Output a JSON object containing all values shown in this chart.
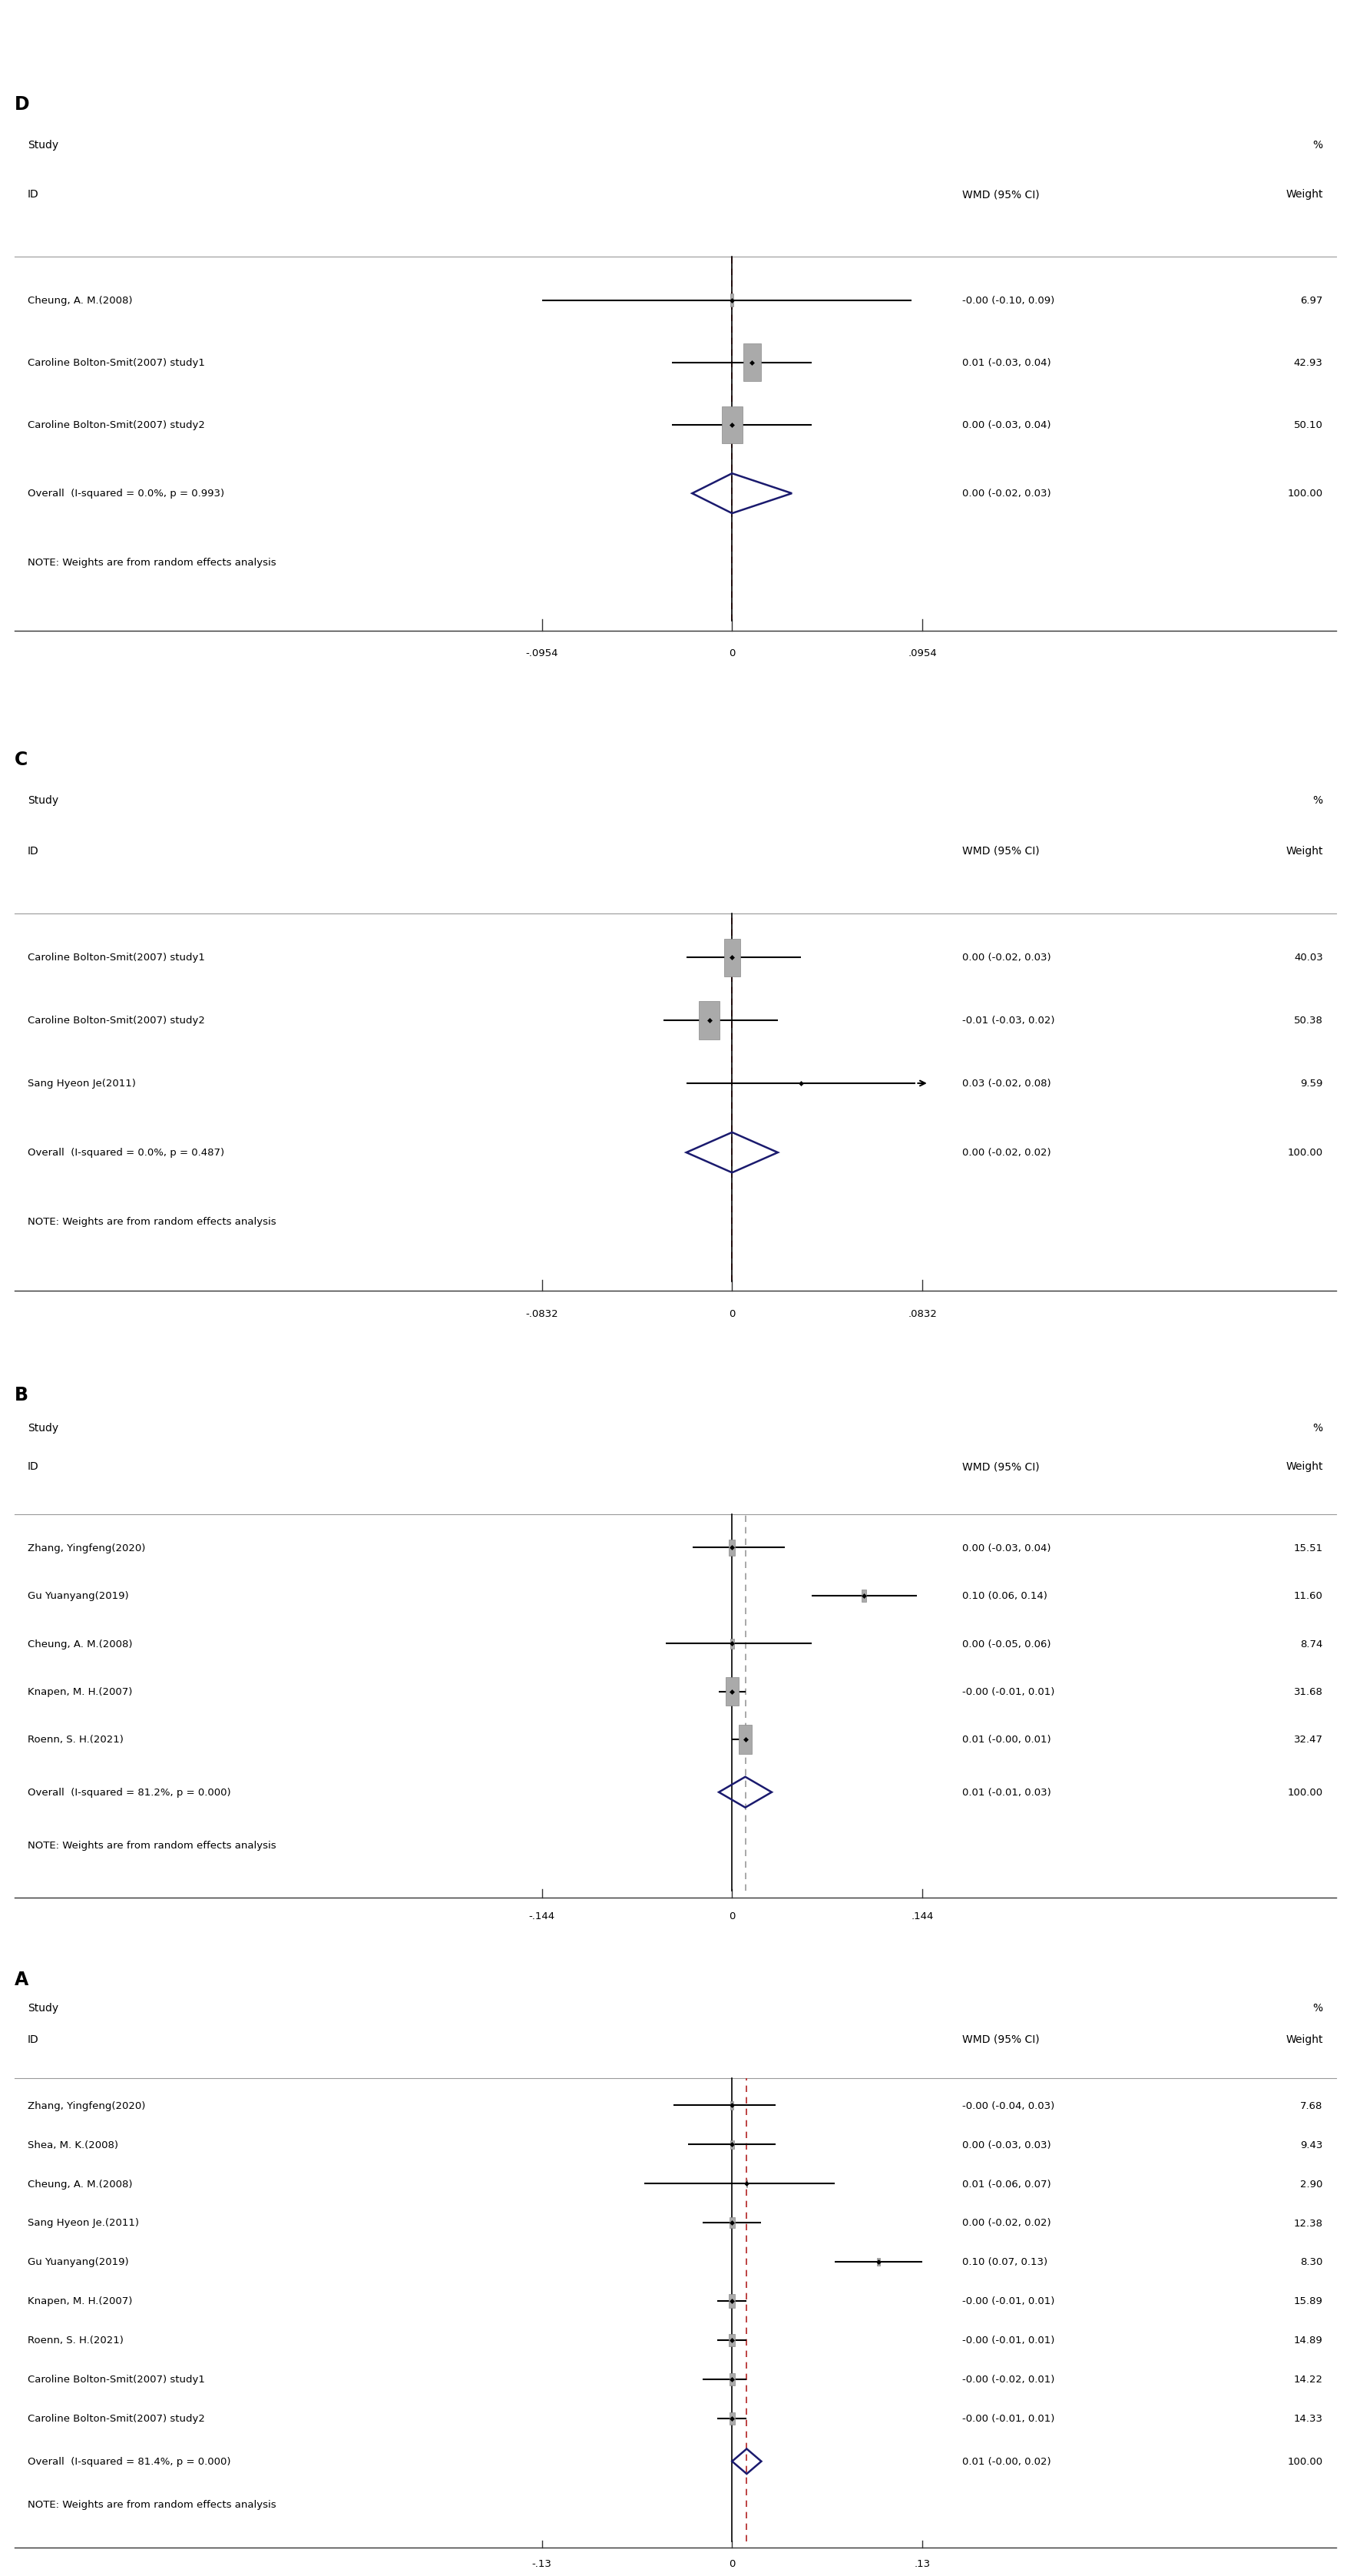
{
  "panels": [
    {
      "label": "A",
      "studies": [
        {
          "name": "Zhang, Yingfeng(2020)",
          "wmd": -0.0,
          "ci_low": -0.04,
          "ci_high": 0.03,
          "weight": 7.68,
          "wmd_str": "-0.00 (-0.04, 0.03)"
        },
        {
          "name": "Shea, M. K.(2008)",
          "wmd": 0.0,
          "ci_low": -0.03,
          "ci_high": 0.03,
          "weight": 9.43,
          "wmd_str": "0.00 (-0.03, 0.03)"
        },
        {
          "name": "Cheung, A. M.(2008)",
          "wmd": 0.01,
          "ci_low": -0.06,
          "ci_high": 0.07,
          "weight": 2.9,
          "wmd_str": "0.01 (-0.06, 0.07)"
        },
        {
          "name": "Sang Hyeon Je.(2011)",
          "wmd": 0.0,
          "ci_low": -0.02,
          "ci_high": 0.02,
          "weight": 12.38,
          "wmd_str": "0.00 (-0.02, 0.02)"
        },
        {
          "name": "Gu Yuanyang(2019)",
          "wmd": 0.1,
          "ci_low": 0.07,
          "ci_high": 0.13,
          "weight": 8.3,
          "wmd_str": "0.10 (0.07, 0.13)"
        },
        {
          "name": "Knapen, M. H.(2007)",
          "wmd": -0.0,
          "ci_low": -0.01,
          "ci_high": 0.01,
          "weight": 15.89,
          "wmd_str": "-0.00 (-0.01, 0.01)"
        },
        {
          "name": "Roenn, S. H.(2021)",
          "wmd": -0.0,
          "ci_low": -0.01,
          "ci_high": 0.01,
          "weight": 14.89,
          "wmd_str": "-0.00 (-0.01, 0.01)"
        },
        {
          "name": "Caroline Bolton-Smit(2007) study1",
          "wmd": -0.0,
          "ci_low": -0.02,
          "ci_high": 0.01,
          "weight": 14.22,
          "wmd_str": "-0.00 (-0.02, 0.01)"
        },
        {
          "name": "Caroline Bolton-Smit(2007) study2",
          "wmd": -0.0,
          "ci_low": -0.01,
          "ci_high": 0.01,
          "weight": 14.33,
          "wmd_str": "-0.00 (-0.01, 0.01)"
        }
      ],
      "overall": {
        "wmd": 0.01,
        "ci_low": -0.0,
        "ci_high": 0.02,
        "wmd_str": "0.01 (-0.00, 0.02)",
        "label": "Overall  (I-squared = 81.4%, p = 0.000)"
      },
      "xlim": [
        -0.13,
        0.13
      ],
      "xticks": [
        -0.13,
        0.0,
        0.13
      ],
      "xticklabels": [
        "-.13",
        "0",
        ".13"
      ],
      "dashed_line": 0.01,
      "dashed_color": "#b22222",
      "panel_color": "A"
    },
    {
      "label": "B",
      "studies": [
        {
          "name": "Zhang, Yingfeng(2020)",
          "wmd": 0.0,
          "ci_low": -0.03,
          "ci_high": 0.04,
          "weight": 15.51,
          "wmd_str": "0.00 (-0.03, 0.04)"
        },
        {
          "name": "Gu Yuanyang(2019)",
          "wmd": 0.1,
          "ci_low": 0.06,
          "ci_high": 0.14,
          "weight": 11.6,
          "wmd_str": "0.10 (0.06, 0.14)"
        },
        {
          "name": "Cheung, A. M.(2008)",
          "wmd": 0.0,
          "ci_low": -0.05,
          "ci_high": 0.06,
          "weight": 8.74,
          "wmd_str": "0.00 (-0.05, 0.06)"
        },
        {
          "name": "Knapen, M. H.(2007)",
          "wmd": -0.0,
          "ci_low": -0.01,
          "ci_high": 0.01,
          "weight": 31.68,
          "wmd_str": "-0.00 (-0.01, 0.01)"
        },
        {
          "name": "Roenn, S. H.(2021)",
          "wmd": 0.01,
          "ci_low": -0.0,
          "ci_high": 0.01,
          "weight": 32.47,
          "wmd_str": "0.01 (-0.00, 0.01)"
        }
      ],
      "overall": {
        "wmd": 0.01,
        "ci_low": -0.01,
        "ci_high": 0.03,
        "wmd_str": "0.01 (-0.01, 0.03)",
        "label": "Overall  (I-squared = 81.2%, p = 0.000)"
      },
      "xlim": [
        -0.144,
        0.144
      ],
      "xticks": [
        -0.144,
        0.0,
        0.144
      ],
      "xticklabels": [
        "-.144",
        "0",
        ".144"
      ],
      "dashed_line": 0.01,
      "dashed_color": "#999999",
      "panel_color": "B"
    },
    {
      "label": "C",
      "studies": [
        {
          "name": "Caroline Bolton-Smit(2007) study1",
          "wmd": 0.0,
          "ci_low": -0.02,
          "ci_high": 0.03,
          "weight": 40.03,
          "wmd_str": "0.00 (-0.02, 0.03)"
        },
        {
          "name": "Caroline Bolton-Smit(2007) study2",
          "wmd": -0.01,
          "ci_low": -0.03,
          "ci_high": 0.02,
          "weight": 50.38,
          "wmd_str": "-0.01 (-0.03, 0.02)"
        },
        {
          "name": "Sang Hyeon Je(2011)",
          "wmd": 0.03,
          "ci_low": -0.02,
          "ci_high": 0.08,
          "weight": 9.59,
          "wmd_str": "0.03 (-0.02, 0.08)",
          "arrow_right": true,
          "no_square": true
        }
      ],
      "overall": {
        "wmd": 0.0,
        "ci_low": -0.02,
        "ci_high": 0.02,
        "wmd_str": "0.00 (-0.02, 0.02)",
        "label": "Overall  (I-squared = 0.0%, p = 0.487)"
      },
      "xlim": [
        -0.0832,
        0.0832
      ],
      "xticks": [
        -0.0832,
        0.0,
        0.0832
      ],
      "xticklabels": [
        "-.0832",
        "0",
        ".0832"
      ],
      "dashed_line": 0.0,
      "dashed_color": "#b22222",
      "panel_color": "C"
    },
    {
      "label": "D",
      "studies": [
        {
          "name": "Cheung, A. M.(2008)",
          "wmd": -0.0,
          "ci_low": -0.1,
          "ci_high": 0.09,
          "weight": 6.97,
          "wmd_str": "-0.00 (-0.10, 0.09)"
        },
        {
          "name": "Caroline Bolton-Smit(2007) study1",
          "wmd": 0.01,
          "ci_low": -0.03,
          "ci_high": 0.04,
          "weight": 42.93,
          "wmd_str": "0.01 (-0.03, 0.04)"
        },
        {
          "name": "Caroline Bolton-Smit(2007) study2",
          "wmd": 0.0,
          "ci_low": -0.03,
          "ci_high": 0.04,
          "weight": 50.1,
          "wmd_str": "0.00 (-0.03, 0.04)"
        }
      ],
      "overall": {
        "wmd": 0.0,
        "ci_low": -0.02,
        "ci_high": 0.03,
        "wmd_str": "0.00 (-0.02, 0.03)",
        "label": "Overall  (I-squared = 0.0%, p = 0.993)"
      },
      "xlim": [
        -0.0954,
        0.0954
      ],
      "xticks": [
        -0.0954,
        0.0,
        0.0954
      ],
      "xticklabels": [
        "-.0954",
        "0",
        ".0954"
      ],
      "dashed_line": 0.0,
      "dashed_color": "#b22222",
      "panel_color": "D"
    }
  ],
  "bg_color": "#ffffff",
  "text_color": "#000000",
  "diamond_edge_color": "#1a1a6e",
  "zero_line_color": "#000000",
  "marker_color": "#000000",
  "square_color": "#aaaaaa",
  "square_edge_color": "#888888",
  "note_text": "NOTE: Weights are from random effects analysis",
  "font_size_label": 13,
  "font_size_header": 10,
  "font_size_body": 9.5,
  "font_size_tick": 9.5
}
